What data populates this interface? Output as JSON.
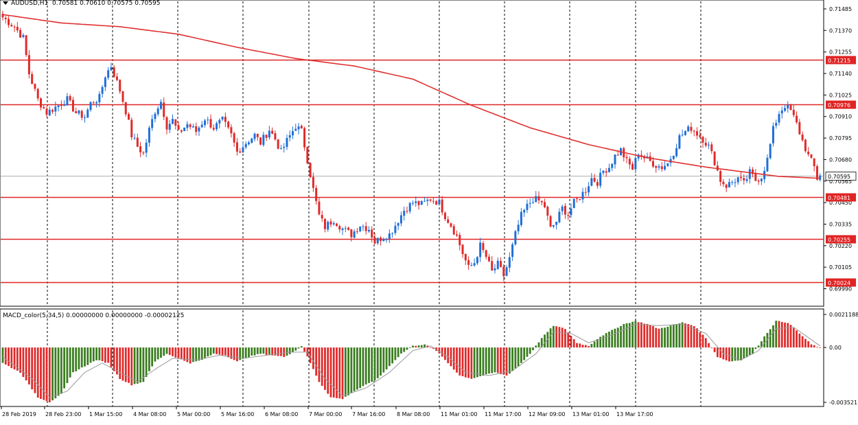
{
  "header": {
    "symbol": "AUDUSD,H1",
    "ohlc": "0.70581 0.70610 0.70575 0.70595"
  },
  "macd_header": {
    "text": "MACD_color(5,34,5) 0.00000000 0.00000000 -0.00002125"
  },
  "colors": {
    "bull": "#1f6fd8",
    "bear": "#e02a2a",
    "ma": "#e03030",
    "level": "#e02424",
    "grid": "#000000",
    "macd_up": "#3a7d1f",
    "macd_down": "#e02a2a",
    "signal": "#9a9a9a",
    "current_line": "#b0b0b0"
  },
  "chart_data": [
    {
      "type": "candlestick",
      "title": "AUDUSD,H1",
      "ylim": [
        0.6995,
        0.715
      ],
      "y_ticks": [
        "0.71485",
        "0.71370",
        "0.71255",
        "0.71140",
        "0.71025",
        "0.70910",
        "0.70795",
        "0.70680",
        "0.70565",
        "0.70450",
        "0.70335",
        "0.70220",
        "0.70105",
        "0.69990"
      ],
      "y_tick_values": [
        0.71485,
        0.7137,
        0.71255,
        0.7114,
        0.71025,
        0.7091,
        0.70795,
        0.7068,
        0.70565,
        0.7045,
        0.70335,
        0.7022,
        0.70105,
        0.6999
      ],
      "x_labels": [
        "28 Feb 2019",
        "28 Feb 23:00",
        "1 Mar 15:00",
        "4 Mar 08:00",
        "5 Mar 00:00",
        "5 Mar 16:00",
        "6 Mar 08:00",
        "7 Mar 00:00",
        "7 Mar 16:00",
        "8 Mar 08:00",
        "11 Mar 01:00",
        "11 Mar 17:00",
        "12 Mar 09:00",
        "13 Mar 01:00",
        "13 Mar 17:00"
      ],
      "horizontal_levels": [
        {
          "label": "0.71215",
          "value": 0.71215
        },
        {
          "label": "0.70976",
          "value": 0.70976
        },
        {
          "label": "0.70481",
          "value": 0.70481
        },
        {
          "label": "0.70255",
          "value": 0.70255
        },
        {
          "label": "0.70024",
          "value": 0.70024
        }
      ],
      "current_price": {
        "label": "0.70595",
        "value": 0.70595
      },
      "price_path": [
        [
          0,
          0.7144
        ],
        [
          4,
          0.7139
        ],
        [
          7,
          0.7133
        ],
        [
          9,
          0.7114
        ],
        [
          12,
          0.71
        ],
        [
          15,
          0.7093
        ],
        [
          18,
          0.7096
        ],
        [
          22,
          0.71
        ],
        [
          25,
          0.7093
        ],
        [
          28,
          0.7091
        ],
        [
          30,
          0.7098
        ],
        [
          33,
          0.7101
        ],
        [
          35,
          0.7113
        ],
        [
          37,
          0.7118
        ],
        [
          40,
          0.7105
        ],
        [
          42,
          0.7094
        ],
        [
          44,
          0.7081
        ],
        [
          46,
          0.7075
        ],
        [
          48,
          0.7071
        ],
        [
          50,
          0.7084
        ],
        [
          52,
          0.7094
        ],
        [
          54,
          0.7099
        ],
        [
          56,
          0.7086
        ],
        [
          58,
          0.7089
        ],
        [
          60,
          0.7082
        ],
        [
          63,
          0.7087
        ],
        [
          66,
          0.7083
        ],
        [
          69,
          0.709
        ],
        [
          72,
          0.7085
        ],
        [
          75,
          0.7089
        ],
        [
          78,
          0.7081
        ],
        [
          80,
          0.7072
        ],
        [
          83,
          0.7077
        ],
        [
          86,
          0.7081
        ],
        [
          88,
          0.7077
        ],
        [
          91,
          0.7084
        ],
        [
          93,
          0.7079
        ],
        [
          95,
          0.7072
        ],
        [
          97,
          0.7078
        ],
        [
          100,
          0.7086
        ],
        [
          102,
          0.7083
        ],
        [
          104,
          0.7068
        ],
        [
          106,
          0.7052
        ],
        [
          108,
          0.7038
        ],
        [
          110,
          0.7032
        ],
        [
          113,
          0.7036
        ],
        [
          116,
          0.7031
        ],
        [
          119,
          0.7028
        ],
        [
          122,
          0.7033
        ],
        [
          125,
          0.7031
        ],
        [
          127,
          0.7024
        ],
        [
          130,
          0.7027
        ],
        [
          132,
          0.7028
        ],
        [
          134,
          0.7033
        ],
        [
          137,
          0.7041
        ],
        [
          140,
          0.7045
        ],
        [
          143,
          0.7044
        ],
        [
          146,
          0.7047
        ],
        [
          149,
          0.7045
        ],
        [
          151,
          0.7038
        ],
        [
          153,
          0.7033
        ],
        [
          155,
          0.7027
        ],
        [
          157,
          0.7018
        ],
        [
          159,
          0.701
        ],
        [
          161,
          0.7013
        ],
        [
          163,
          0.7022
        ],
        [
          165,
          0.7016
        ],
        [
          167,
          0.7008
        ],
        [
          169,
          0.7012
        ],
        [
          171,
          0.7006
        ],
        [
          173,
          0.7015
        ],
        [
          175,
          0.7028
        ],
        [
          177,
          0.7038
        ],
        [
          179,
          0.7043
        ],
        [
          181,
          0.7047
        ],
        [
          183,
          0.7046
        ],
        [
          185,
          0.7043
        ],
        [
          187,
          0.7031
        ],
        [
          189,
          0.7035
        ],
        [
          191,
          0.7042
        ],
        [
          193,
          0.7039
        ],
        [
          195,
          0.7045
        ],
        [
          197,
          0.7048
        ],
        [
          199,
          0.7052
        ],
        [
          201,
          0.7058
        ],
        [
          203,
          0.7056
        ],
        [
          205,
          0.7062
        ],
        [
          207,
          0.7064
        ],
        [
          209,
          0.707
        ],
        [
          211,
          0.7073
        ],
        [
          213,
          0.7067
        ],
        [
          215,
          0.7063
        ],
        [
          217,
          0.7072
        ],
        [
          219,
          0.7069
        ],
        [
          221,
          0.7067
        ],
        [
          223,
          0.7065
        ],
        [
          225,
          0.7064
        ],
        [
          227,
          0.7066
        ],
        [
          229,
          0.7072
        ],
        [
          231,
          0.708
        ],
        [
          233,
          0.7083
        ],
        [
          235,
          0.7085
        ],
        [
          237,
          0.7082
        ],
        [
          239,
          0.7079
        ],
        [
          241,
          0.7075
        ],
        [
          243,
          0.7067
        ],
        [
          245,
          0.7057
        ],
        [
          247,
          0.7054
        ],
        [
          249,
          0.7056
        ],
        [
          251,
          0.7058
        ],
        [
          253,
          0.7055
        ],
        [
          255,
          0.7061
        ],
        [
          257,
          0.7057
        ],
        [
          259,
          0.7059
        ],
        [
          261,
          0.7068
        ],
        [
          263,
          0.7084
        ],
        [
          265,
          0.7093
        ],
        [
          267,
          0.7097
        ],
        [
          269,
          0.7094
        ],
        [
          271,
          0.7087
        ],
        [
          273,
          0.7078
        ],
        [
          275,
          0.707
        ],
        [
          277,
          0.7064
        ],
        [
          278,
          0.7058
        ],
        [
          279,
          0.70595
        ]
      ],
      "moving_average": [
        [
          0,
          0.71455
        ],
        [
          20,
          0.7141
        ],
        [
          40,
          0.7139
        ],
        [
          60,
          0.7135
        ],
        [
          80,
          0.7128
        ],
        [
          100,
          0.7122
        ],
        [
          120,
          0.7118
        ],
        [
          140,
          0.7111
        ],
        [
          160,
          0.7097
        ],
        [
          180,
          0.7085
        ],
        [
          200,
          0.7076
        ],
        [
          220,
          0.7069
        ],
        [
          240,
          0.7064
        ],
        [
          255,
          0.7061
        ],
        [
          265,
          0.7059
        ],
        [
          279,
          0.7058
        ]
      ]
    },
    {
      "type": "bar",
      "title": "MACD_color(5,34,5) 0.00000000 0.00000000 -0.00002125",
      "ylim": [
        -0.0035,
        0.0021
      ],
      "y_ticks": [
        "0.0021188",
        "0.00",
        "-0.003521"
      ],
      "y_tick_values": [
        0.0021188,
        0.0,
        -0.003521
      ],
      "macd_path": [
        [
          0,
          -0.001
        ],
        [
          6,
          -0.0016
        ],
        [
          12,
          -0.0032
        ],
        [
          16,
          -0.0035
        ],
        [
          20,
          -0.003
        ],
        [
          24,
          -0.0016
        ],
        [
          28,
          -0.0012
        ],
        [
          32,
          -0.0008
        ],
        [
          36,
          -0.001
        ],
        [
          40,
          -0.002
        ],
        [
          44,
          -0.0024
        ],
        [
          48,
          -0.0022
        ],
        [
          52,
          -0.0009
        ],
        [
          56,
          -0.0004
        ],
        [
          60,
          -0.0007
        ],
        [
          64,
          -0.001
        ],
        [
          68,
          -0.0008
        ],
        [
          72,
          -0.0004
        ],
        [
          76,
          -0.0005
        ],
        [
          80,
          -0.0009
        ],
        [
          84,
          -0.0006
        ],
        [
          88,
          -0.0004
        ],
        [
          92,
          -0.0005
        ],
        [
          96,
          -0.0006
        ],
        [
          100,
          -0.0002
        ],
        [
          102,
          0.0001
        ],
        [
          104,
          -0.0006
        ],
        [
          108,
          -0.0022
        ],
        [
          112,
          -0.0032
        ],
        [
          116,
          -0.0033
        ],
        [
          120,
          -0.0028
        ],
        [
          124,
          -0.0024
        ],
        [
          128,
          -0.002
        ],
        [
          132,
          -0.0012
        ],
        [
          136,
          -0.0004
        ],
        [
          140,
          0.0001
        ],
        [
          144,
          0.0002
        ],
        [
          148,
          -0.0002
        ],
        [
          152,
          -0.001
        ],
        [
          156,
          -0.0018
        ],
        [
          160,
          -0.002
        ],
        [
          164,
          -0.0018
        ],
        [
          168,
          -0.0016
        ],
        [
          172,
          -0.0018
        ],
        [
          176,
          -0.0012
        ],
        [
          180,
          -0.0004
        ],
        [
          184,
          0.0006
        ],
        [
          188,
          0.0014
        ],
        [
          192,
          0.0012
        ],
        [
          196,
          0.0003
        ],
        [
          200,
          0.0001
        ],
        [
          204,
          0.0007
        ],
        [
          208,
          0.0011
        ],
        [
          212,
          0.0015
        ],
        [
          216,
          0.0017
        ],
        [
          220,
          0.0015
        ],
        [
          224,
          0.0012
        ],
        [
          228,
          0.0014
        ],
        [
          232,
          0.0016
        ],
        [
          236,
          0.0014
        ],
        [
          240,
          0.0006
        ],
        [
          244,
          -0.0006
        ],
        [
          248,
          -0.0009
        ],
        [
          252,
          -0.0008
        ],
        [
          256,
          -0.0004
        ],
        [
          260,
          0.0007
        ],
        [
          264,
          0.0017
        ],
        [
          268,
          0.0016
        ],
        [
          272,
          0.0009
        ],
        [
          276,
          0.0002
        ],
        [
          279,
          -2e-05
        ]
      ],
      "signal_path": [
        [
          0,
          -0.0006
        ],
        [
          10,
          -0.002
        ],
        [
          16,
          -0.0032
        ],
        [
          22,
          -0.0028
        ],
        [
          28,
          -0.0016
        ],
        [
          34,
          -0.001
        ],
        [
          40,
          -0.0016
        ],
        [
          46,
          -0.0022
        ],
        [
          52,
          -0.0014
        ],
        [
          58,
          -0.0007
        ],
        [
          66,
          -0.0008
        ],
        [
          74,
          -0.0005
        ],
        [
          82,
          -0.0007
        ],
        [
          90,
          -0.0005
        ],
        [
          98,
          -0.0003
        ],
        [
          104,
          -0.0003
        ],
        [
          110,
          -0.002
        ],
        [
          116,
          -0.0031
        ],
        [
          124,
          -0.0026
        ],
        [
          132,
          -0.0016
        ],
        [
          140,
          -0.0002
        ],
        [
          146,
          0.0001
        ],
        [
          152,
          -0.0006
        ],
        [
          158,
          -0.0016
        ],
        [
          166,
          -0.0018
        ],
        [
          174,
          -0.0015
        ],
        [
          182,
          -0.0004
        ],
        [
          188,
          0.001
        ],
        [
          194,
          0.0009
        ],
        [
          200,
          0.0003
        ],
        [
          208,
          0.0008
        ],
        [
          216,
          0.0015
        ],
        [
          224,
          0.0014
        ],
        [
          232,
          0.0015
        ],
        [
          240,
          0.0009
        ],
        [
          246,
          -0.0004
        ],
        [
          252,
          -0.0008
        ],
        [
          258,
          -0.0002
        ],
        [
          264,
          0.0012
        ],
        [
          270,
          0.0013
        ],
        [
          276,
          0.0005
        ],
        [
          279,
          0.0001
        ]
      ]
    }
  ]
}
